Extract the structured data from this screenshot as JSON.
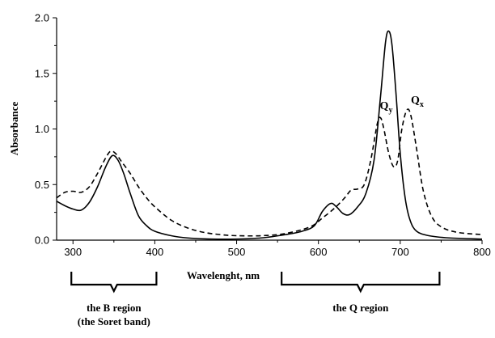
{
  "chart_data": {
    "type": "line",
    "title": "",
    "xlabel": "Wavelenght, nm",
    "ylabel": "Absorbance",
    "xlim": [
      280,
      800
    ],
    "ylim": [
      0,
      2.0
    ],
    "x_ticks": [
      300,
      400,
      500,
      600,
      700,
      800
    ],
    "x_tick_labels": [
      "300",
      "400",
      "500",
      "600",
      "700",
      "800"
    ],
    "y_ticks": [
      0,
      0.5,
      1.0,
      1.5,
      2.0
    ],
    "y_tick_labels": [
      "0.0",
      "0.5",
      "1.0",
      "1.5",
      "2.0"
    ],
    "grid": false,
    "series": [
      {
        "style": "solid",
        "color": "#000000",
        "points": [
          [
            280,
            0.35
          ],
          [
            290,
            0.31
          ],
          [
            300,
            0.28
          ],
          [
            310,
            0.27
          ],
          [
            320,
            0.34
          ],
          [
            330,
            0.48
          ],
          [
            340,
            0.66
          ],
          [
            348,
            0.76
          ],
          [
            355,
            0.72
          ],
          [
            362,
            0.6
          ],
          [
            370,
            0.42
          ],
          [
            380,
            0.22
          ],
          [
            390,
            0.13
          ],
          [
            400,
            0.08
          ],
          [
            420,
            0.04
          ],
          [
            440,
            0.02
          ],
          [
            470,
            0.01
          ],
          [
            500,
            0.01
          ],
          [
            530,
            0.02
          ],
          [
            560,
            0.05
          ],
          [
            580,
            0.08
          ],
          [
            595,
            0.13
          ],
          [
            605,
            0.26
          ],
          [
            615,
            0.33
          ],
          [
            622,
            0.3
          ],
          [
            630,
            0.24
          ],
          [
            638,
            0.23
          ],
          [
            648,
            0.3
          ],
          [
            658,
            0.42
          ],
          [
            668,
            0.72
          ],
          [
            676,
            1.3
          ],
          [
            682,
            1.78
          ],
          [
            686,
            1.88
          ],
          [
            690,
            1.75
          ],
          [
            695,
            1.3
          ],
          [
            700,
            0.78
          ],
          [
            706,
            0.38
          ],
          [
            712,
            0.18
          ],
          [
            720,
            0.08
          ],
          [
            735,
            0.04
          ],
          [
            760,
            0.02
          ],
          [
            800,
            0.01
          ]
        ]
      },
      {
        "style": "dashed",
        "color": "#000000",
        "points": [
          [
            280,
            0.38
          ],
          [
            290,
            0.43
          ],
          [
            300,
            0.44
          ],
          [
            310,
            0.43
          ],
          [
            320,
            0.48
          ],
          [
            330,
            0.6
          ],
          [
            340,
            0.74
          ],
          [
            346,
            0.8
          ],
          [
            352,
            0.78
          ],
          [
            360,
            0.7
          ],
          [
            370,
            0.6
          ],
          [
            380,
            0.48
          ],
          [
            390,
            0.38
          ],
          [
            400,
            0.3
          ],
          [
            420,
            0.18
          ],
          [
            440,
            0.11
          ],
          [
            460,
            0.07
          ],
          [
            480,
            0.05
          ],
          [
            500,
            0.04
          ],
          [
            530,
            0.04
          ],
          [
            560,
            0.06
          ],
          [
            590,
            0.12
          ],
          [
            605,
            0.2
          ],
          [
            620,
            0.29
          ],
          [
            632,
            0.38
          ],
          [
            640,
            0.45
          ],
          [
            648,
            0.46
          ],
          [
            656,
            0.5
          ],
          [
            664,
            0.72
          ],
          [
            672,
            1.05
          ],
          [
            676,
            1.1
          ],
          [
            680,
            1.0
          ],
          [
            686,
            0.78
          ],
          [
            692,
            0.66
          ],
          [
            697,
            0.72
          ],
          [
            702,
            1.0
          ],
          [
            708,
            1.17
          ],
          [
            713,
            1.12
          ],
          [
            720,
            0.82
          ],
          [
            728,
            0.45
          ],
          [
            738,
            0.22
          ],
          [
            750,
            0.12
          ],
          [
            770,
            0.07
          ],
          [
            800,
            0.05
          ]
        ]
      }
    ],
    "annotations": [
      {
        "text": "Q",
        "sub": "y",
        "x": 675,
        "y": 1.18
      },
      {
        "text": "Q",
        "sub": "x",
        "x": 713,
        "y": 1.23
      }
    ],
    "regions": [
      {
        "label_lines": [
          "the B region",
          "(the Soret band)"
        ],
        "from": 298,
        "to": 402
      },
      {
        "label_lines": [
          "the Q region"
        ],
        "from": 555,
        "to": 748
      }
    ]
  }
}
